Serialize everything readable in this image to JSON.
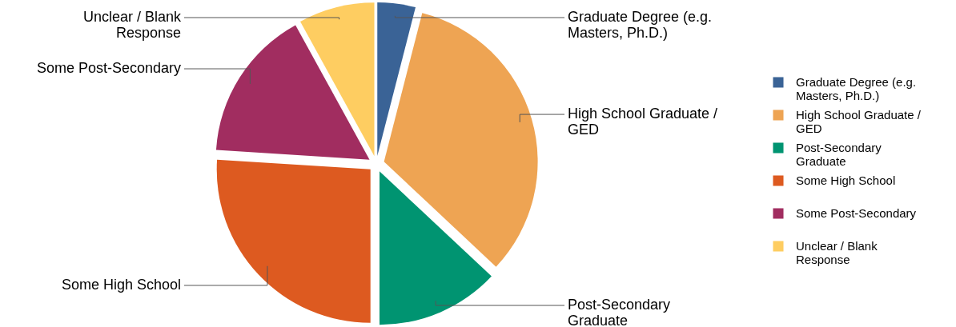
{
  "chart_data": {
    "type": "pie",
    "categories": [
      "Graduate Degree (e.g. Masters, Ph.D.)",
      "High School Graduate / GED",
      "Post-Secondary Graduate",
      "Some High School",
      "Some Post-Secondary",
      "Unclear / Blank Response"
    ],
    "values": [
      4,
      33,
      13,
      26,
      16,
      8
    ],
    "colors": [
      "#3a6396",
      "#eea453",
      "#009471",
      "#dd5a20",
      "#a12d60",
      "#fecd61"
    ],
    "legend": "right"
  }
}
